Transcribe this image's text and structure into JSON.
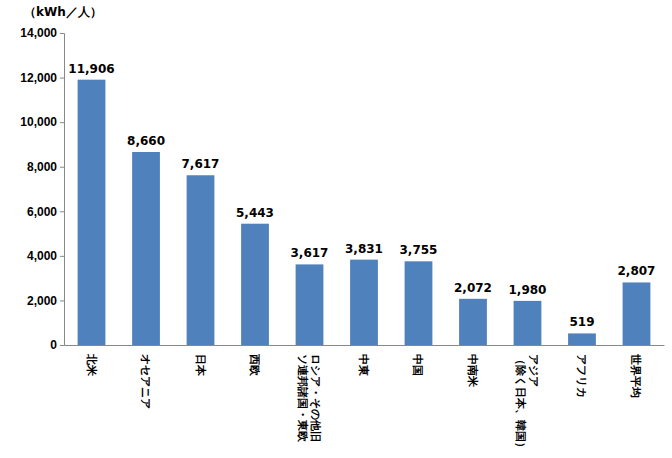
{
  "chart_data": {
    "type": "bar",
    "ylabel": "（kWh／人）",
    "categories": [
      "北米",
      "オセアニア",
      "日本",
      "西欧",
      "ロシア・その他旧\nソ連邦諸国・東欧",
      "中東",
      "中国",
      "中南米",
      "アジア\n（除く日本、韓国）",
      "アフリカ",
      "世界平均"
    ],
    "values": [
      11906,
      8660,
      7617,
      5443,
      3617,
      3831,
      3755,
      2072,
      1980,
      519,
      2807
    ],
    "value_labels": [
      "11,906",
      "8,660",
      "7,617",
      "5,443",
      "3,617",
      "3,831",
      "3,755",
      "2,072",
      "1,980",
      "519",
      "2,807"
    ],
    "color": "#4f81bd",
    "ylim": [
      0,
      14000
    ],
    "yticks": [
      0,
      {
        "value": 2000,
        "label": "2,000"
      },
      {
        "value": 4000,
        "label": "4,000"
      },
      {
        "value": 6000,
        "label": "6,000"
      },
      {
        "value": 8000,
        "label": "8,000"
      },
      {
        "value": 10000,
        "label": "10,000"
      },
      {
        "value": 12000,
        "label": "12,000"
      },
      {
        "value": 14000,
        "label": "14,000"
      }
    ],
    "grid": false,
    "data_labels": true
  }
}
